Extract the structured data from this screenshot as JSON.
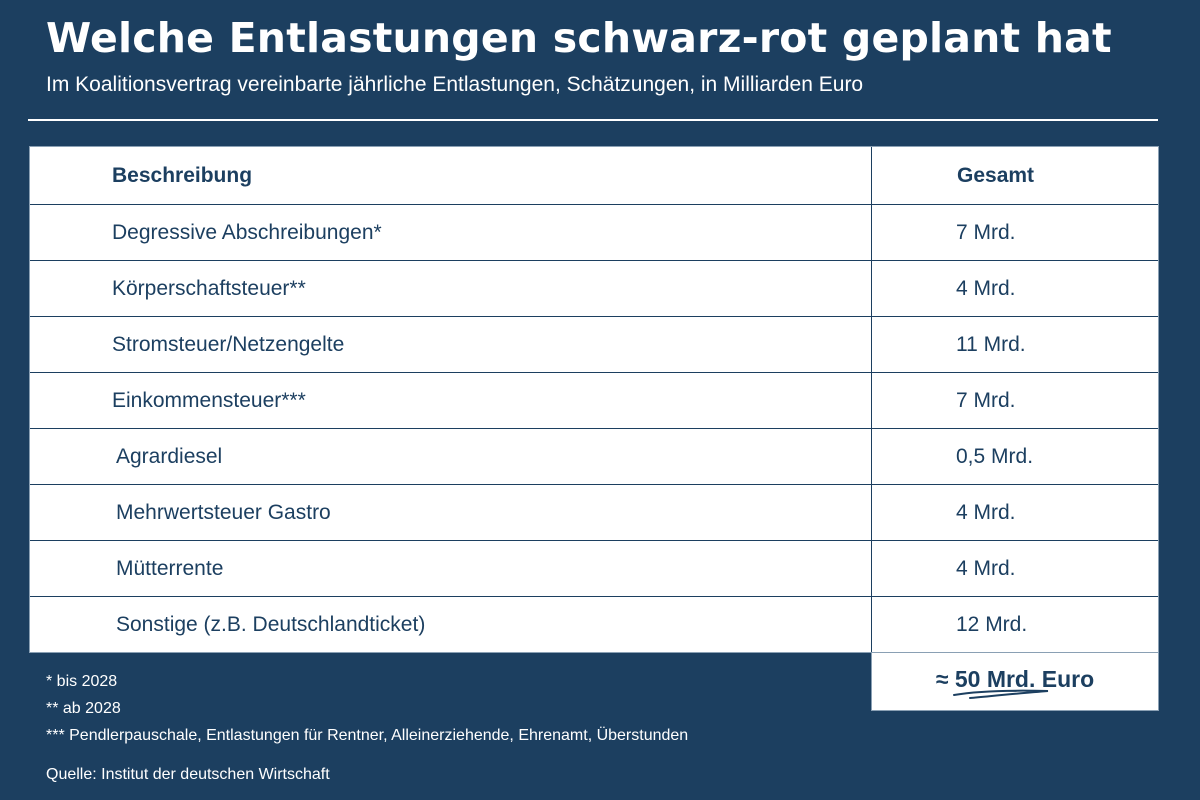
{
  "header": {
    "title": "Welche Entlastungen schwarz-rot geplant hat",
    "subtitle": "Im Koalitionsvertrag vereinbarte jährliche Entlastungen, Schätzungen, in Milliarden Euro"
  },
  "table": {
    "columns": [
      "Beschreibung",
      "Gesamt"
    ],
    "rows": [
      {
        "label": "Degressive Abschreibungen*",
        "value": "7 Mrd."
      },
      {
        "label": "Körperschaftsteuer**",
        "value": "4 Mrd."
      },
      {
        "label": "Stromsteuer/Netzengelte",
        "value": "11 Mrd."
      },
      {
        "label": "Einkommensteuer***",
        "value": "7 Mrd."
      },
      {
        "label": "Agrardiesel",
        "value": "0,5 Mrd."
      },
      {
        "label": "Mehrwertsteuer Gastro",
        "value": "4 Mrd."
      },
      {
        "label": "Mütterrente",
        "value": "4 Mrd."
      },
      {
        "label": "Sonstige (z.B. Deutschlandticket)",
        "value": "12  Mrd."
      }
    ],
    "total": "≈ 50 Mrd. Euro"
  },
  "footnotes": [
    "* bis 2028",
    "** ab 2028",
    "*** Pendlerpauschale, Entlastungen für Rentner, Alleinerziehende, Ehrenamt, Überstunden"
  ],
  "source": "Quelle: Institut der deutschen Wirtschaft",
  "colors": {
    "background": "#1c3f60",
    "table_background": "#ffffff",
    "text_dark": "#1c3f60"
  }
}
